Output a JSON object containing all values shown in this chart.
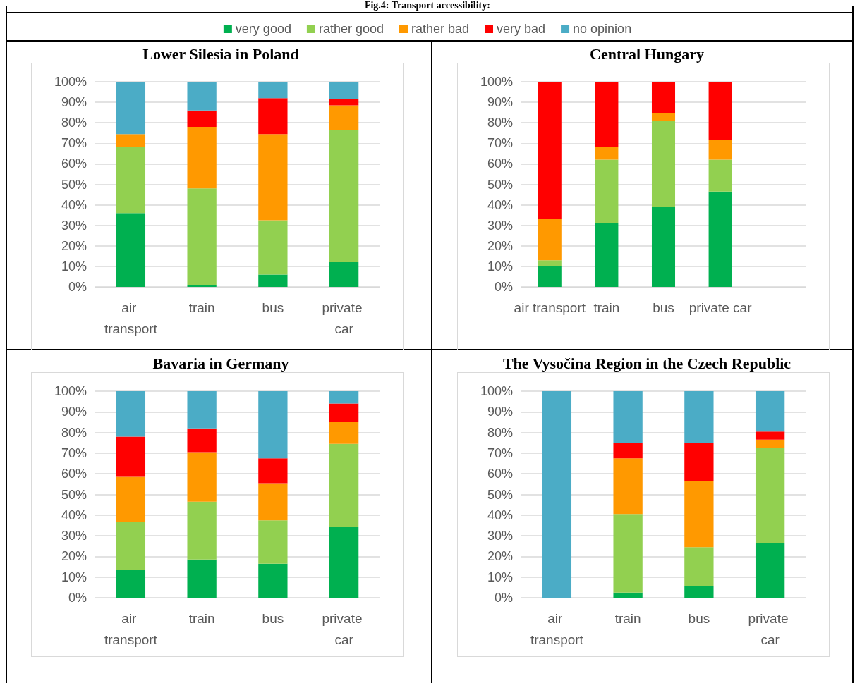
{
  "chart_data": [
    {
      "type": "bar",
      "title": "Lower Silesia in Poland",
      "annotations": [
        "Fig.4: Transport accessibility:"
      ],
      "categories": [
        "air transport",
        "train",
        "bus",
        "private car"
      ],
      "stacked": true,
      "grid": "y",
      "legend": "top",
      "ylim": [
        0,
        100
      ],
      "yticks": [
        {
          "value": 0,
          "label": "0%"
        },
        {
          "value": 10,
          "label": "10%"
        },
        {
          "value": 20,
          "label": "20%"
        },
        {
          "value": 30,
          "label": "30%"
        },
        {
          "value": 40,
          "label": "40%"
        },
        {
          "value": 50,
          "label": "50%"
        },
        {
          "value": 60,
          "label": "60%"
        },
        {
          "value": 70,
          "label": "70%"
        },
        {
          "value": 80,
          "label": "80%"
        },
        {
          "value": 90,
          "label": "90%"
        },
        {
          "value": 100,
          "label": "100%"
        }
      ],
      "series": [
        {
          "name": "very good",
          "color": "#00b050",
          "values": [
            36,
            1,
            6,
            12
          ]
        },
        {
          "name": "rather good",
          "color": "#92d050",
          "values": [
            32,
            47,
            26.5,
            64.5
          ]
        },
        {
          "name": "rather bad",
          "color": "#ff9900",
          "values": [
            6.5,
            30,
            42,
            12
          ]
        },
        {
          "name": "very bad",
          "color": "#ff0000",
          "values": [
            0,
            8,
            17.5,
            3
          ]
        },
        {
          "name": "no opinion",
          "color": "#4bacc6",
          "values": [
            25.5,
            14,
            8,
            8.5
          ]
        }
      ]
    },
    {
      "type": "bar",
      "title": "Central Hungary",
      "categories": [
        "air transport",
        "train",
        "bus",
        "private car",
        null
      ],
      "stacked": true,
      "grid": "y",
      "ylim": [
        0,
        100
      ],
      "yticks": [
        {
          "value": 0,
          "label": "0%"
        },
        {
          "value": 10,
          "label": "10%"
        },
        {
          "value": 20,
          "label": "20%"
        },
        {
          "value": 30,
          "label": "30%"
        },
        {
          "value": 40,
          "label": "40%"
        },
        {
          "value": 50,
          "label": "50%"
        },
        {
          "value": 60,
          "label": "60%"
        },
        {
          "value": 70,
          "label": "70%"
        },
        {
          "value": 80,
          "label": "80%"
        },
        {
          "value": 90,
          "label": "90%"
        },
        {
          "value": 100,
          "label": "100%"
        }
      ],
      "series": [
        {
          "color": "#00b050",
          "values": [
            10,
            31,
            39,
            46.5,
            null
          ]
        },
        {
          "color": "#92d050",
          "values": [
            3,
            31,
            42,
            15.5,
            null
          ]
        },
        {
          "color": "#ff9900",
          "values": [
            20,
            6,
            3.5,
            9.5,
            null
          ]
        },
        {
          "color": "#ff0000",
          "values": [
            67,
            32,
            15.5,
            28.5,
            null
          ]
        }
      ]
    },
    {
      "type": "bar",
      "title": "Bavaria in Germany",
      "categories": [
        "air transport",
        "train",
        "bus",
        "private car"
      ],
      "stacked": true,
      "grid": "y",
      "ylim": [
        0,
        100
      ],
      "yticks": [
        {
          "value": 0,
          "label": "0%"
        },
        {
          "value": 10,
          "label": "10%"
        },
        {
          "value": 20,
          "label": "20%"
        },
        {
          "value": 30,
          "label": "30%"
        },
        {
          "value": 40,
          "label": "40%"
        },
        {
          "value": 50,
          "label": "50%"
        },
        {
          "value": 60,
          "label": "60%"
        },
        {
          "value": 70,
          "label": "70%"
        },
        {
          "value": 80,
          "label": "80%"
        },
        {
          "value": 90,
          "label": "90%"
        },
        {
          "value": 100,
          "label": "100%"
        }
      ],
      "series": [
        {
          "color": "#00b050",
          "values": [
            13.5,
            18.5,
            16.5,
            34.5
          ]
        },
        {
          "color": "#92d050",
          "values": [
            23,
            28,
            21,
            40
          ]
        },
        {
          "color": "#ff9900",
          "values": [
            22,
            24,
            18,
            10.5
          ]
        },
        {
          "color": "#ff0000",
          "values": [
            19.5,
            11.5,
            12,
            9
          ]
        },
        {
          "color": "#4bacc6",
          "values": [
            22,
            18,
            32.5,
            6
          ]
        }
      ]
    },
    {
      "type": "bar",
      "title": "The Vysočina Region in the Czech Republic",
      "categories": [
        "air transport",
        "train",
        "bus",
        "private car"
      ],
      "stacked": true,
      "grid": "y",
      "ylim": [
        0,
        100
      ],
      "yticks": [
        {
          "value": 0,
          "label": "0%"
        },
        {
          "value": 10,
          "label": "10%"
        },
        {
          "value": 20,
          "label": "20%"
        },
        {
          "value": 30,
          "label": "30%"
        },
        {
          "value": 40,
          "label": "40%"
        },
        {
          "value": 50,
          "label": "50%"
        },
        {
          "value": 60,
          "label": "60%"
        },
        {
          "value": 70,
          "label": "70%"
        },
        {
          "value": 80,
          "label": "80%"
        },
        {
          "value": 90,
          "label": "90%"
        },
        {
          "value": 100,
          "label": "100%"
        }
      ],
      "series": [
        {
          "color": "#00b050",
          "values": [
            0,
            2.5,
            5.5,
            26.5
          ]
        },
        {
          "color": "#92d050",
          "values": [
            0,
            38,
            19,
            46
          ]
        },
        {
          "color": "#ff9900",
          "values": [
            0,
            27,
            32,
            4
          ]
        },
        {
          "color": "#ff0000",
          "values": [
            0,
            7.5,
            18.5,
            4
          ]
        },
        {
          "color": "#4bacc6",
          "values": [
            100,
            25,
            25,
            19.5
          ]
        }
      ]
    }
  ]
}
